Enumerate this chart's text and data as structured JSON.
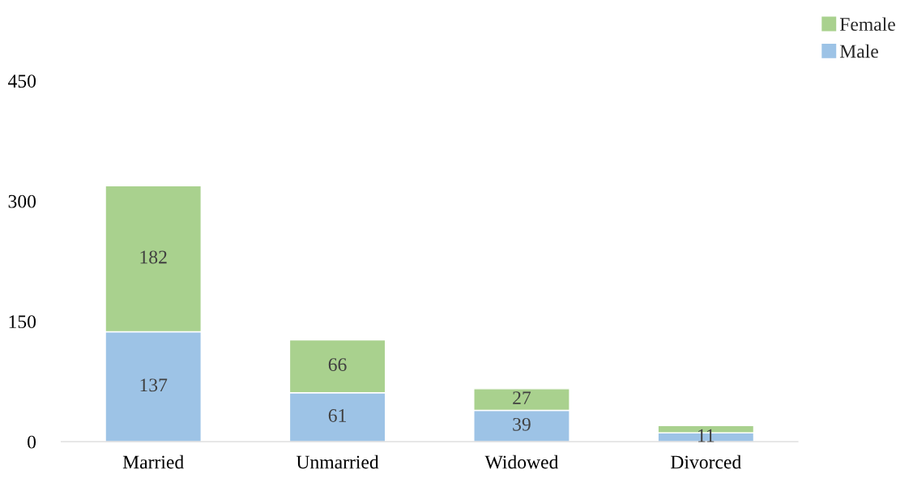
{
  "chart_data": {
    "type": "bar",
    "stacked": true,
    "categories": [
      "Married",
      "Unmarried",
      "Widowed",
      "Divorced"
    ],
    "series": [
      {
        "name": "Male",
        "color": "#9dc3e6",
        "values": [
          137,
          61,
          39,
          11
        ],
        "value_labels": [
          "137",
          "61",
          "39",
          "11"
        ]
      },
      {
        "name": "Female",
        "color": "#a9d18e",
        "values": [
          182,
          66,
          27,
          9
        ],
        "value_labels": [
          "182",
          "66",
          "27",
          null
        ]
      }
    ],
    "ylim": [
      0,
      450
    ],
    "yticks": [
      0,
      150,
      300,
      450
    ],
    "grid": false,
    "legend": "top right"
  }
}
